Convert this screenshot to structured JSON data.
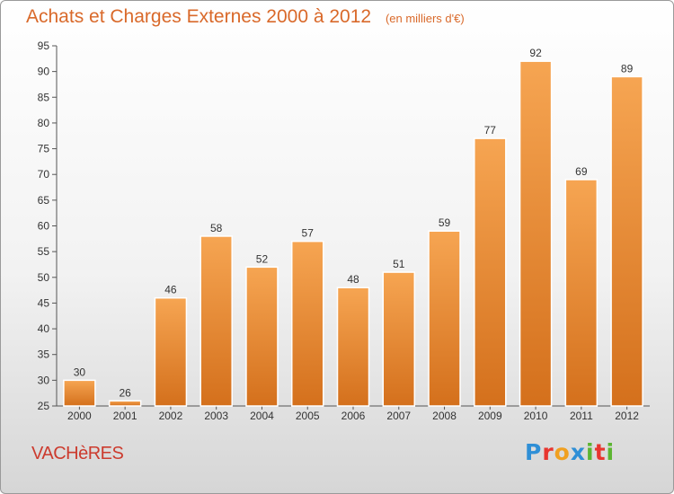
{
  "chart_data": {
    "type": "bar",
    "title": "Achats et Charges Externes 2000 à 2012",
    "subtitle": "(en milliers d'€)",
    "categories": [
      "2000",
      "2001",
      "2002",
      "2003",
      "2004",
      "2005",
      "2006",
      "2007",
      "2008",
      "2009",
      "2010",
      "2011",
      "2012"
    ],
    "values": [
      30,
      26,
      46,
      58,
      52,
      57,
      48,
      51,
      59,
      77,
      92,
      69,
      89
    ],
    "ylim": [
      25,
      95
    ],
    "yticks": [
      25,
      30,
      35,
      40,
      45,
      50,
      55,
      60,
      65,
      70,
      75,
      80,
      85,
      90,
      95
    ],
    "grid": false,
    "bar_color": "#f08a30"
  },
  "footer": {
    "commune": "VACHèRES",
    "brand_letters": [
      {
        "char": "P",
        "color": "#2f8fd6"
      },
      {
        "char": "r",
        "color": "#e8362f"
      },
      {
        "char": "o",
        "color": "#f0a020"
      },
      {
        "char": "x",
        "color": "#2f8fd6"
      },
      {
        "char": "i",
        "color": "#5cb531"
      },
      {
        "char": "t",
        "color": "#e8362f"
      },
      {
        "char": "i",
        "color": "#5cb531"
      }
    ]
  }
}
